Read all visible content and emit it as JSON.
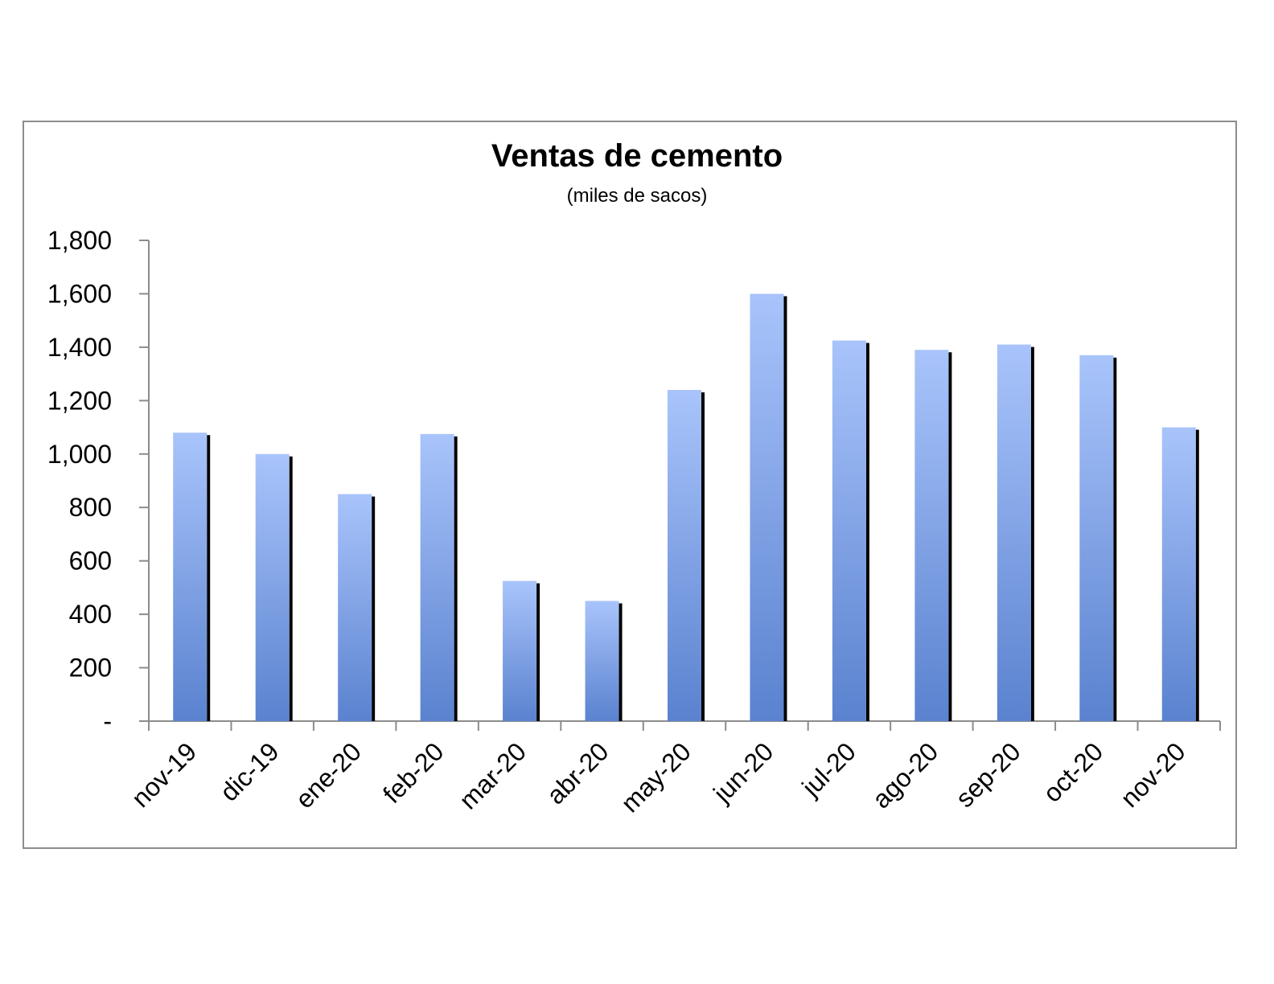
{
  "chart_data": {
    "type": "bar",
    "title": "Ventas de cemento",
    "subtitle": "(miles de sacos)",
    "xlabel": "",
    "ylabel": "",
    "categories": [
      "nov-19",
      "dic-19",
      "ene-20",
      "feb-20",
      "mar-20",
      "abr-20",
      "may-20",
      "jun-20",
      "jul-20",
      "ago-20",
      "sep-20",
      "oct-20",
      "nov-20"
    ],
    "values": [
      1080,
      1000,
      850,
      1075,
      525,
      450,
      1240,
      1600,
      1425,
      1390,
      1410,
      1370,
      1100
    ],
    "ylim": [
      0,
      1800
    ],
    "yticks": [
      0,
      200,
      400,
      600,
      800,
      1000,
      1200,
      1400,
      1600,
      1800
    ],
    "ytick_labels": [
      "-",
      "200",
      "400",
      "600",
      "800",
      "1,000",
      "1,200",
      "1,400",
      "1,600",
      "1,800"
    ],
    "grid": false,
    "legend": "none",
    "colors": {
      "bar_top": "#a9c4fb",
      "bar_bottom": "#5a82cf",
      "bar_shadow": "#000000",
      "axis": "#8c8c8c"
    }
  }
}
